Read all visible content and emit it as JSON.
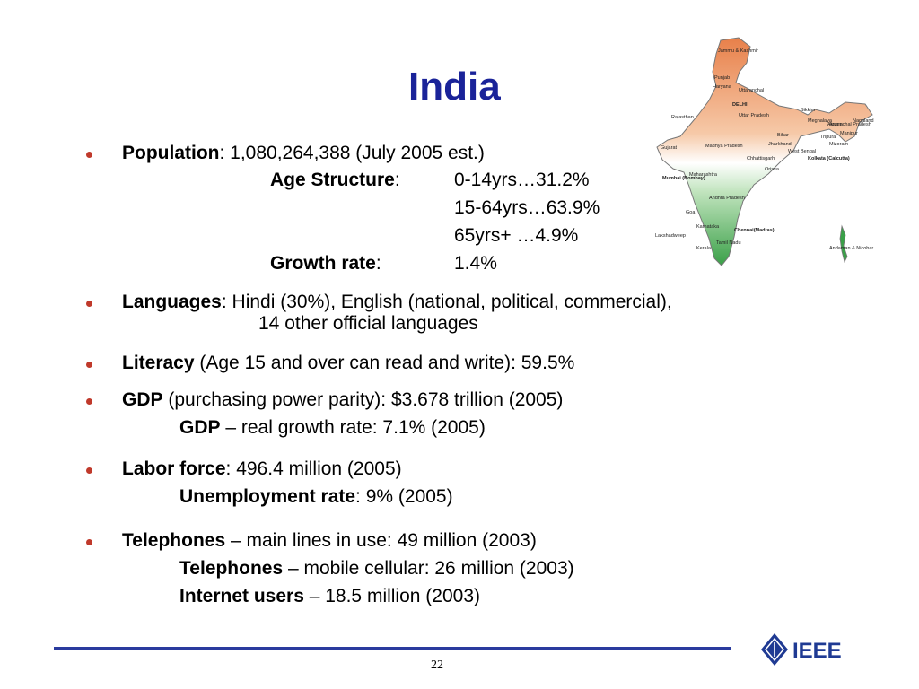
{
  "slide": {
    "title": "India",
    "page_number": "22",
    "logo_text": "IEEE"
  },
  "bullets": {
    "population": {
      "label": "Population",
      "text": ": 1,080,264,388 (July 2005 est.)",
      "age_structure_label": "Age Structure",
      "age_structure_colon": ":",
      "ages": [
        "0-14yrs…31.2%",
        "15-64yrs…63.9%",
        "65yrs+ …4.9%"
      ],
      "growth_label": "Growth rate",
      "growth_colon": ":",
      "growth_value": "1.4%"
    },
    "languages": {
      "label": "Languages",
      "text": ": Hindi (30%), English (national, political, commercial),",
      "text2": "14 other official languages"
    },
    "literacy": {
      "label": "Literacy",
      "text": " (Age 15 and over can read and write): 59.5%"
    },
    "gdp": {
      "label": "GDP",
      "text": " (purchasing power parity): $3.678 trillion (2005)",
      "sub_label": "GDP",
      "sub_text": " – real growth rate: 7.1% (2005)"
    },
    "labor": {
      "label": "Labor force",
      "text": ": 496.4 million (2005)",
      "sub_label": "Unemployment rate",
      "sub_text": ": 9% (2005)"
    },
    "telephones": {
      "label": "Telephones",
      "text": " – main lines in use: 49 million (2003)",
      "sub1_label": "Telephones",
      "sub1_text": " – mobile cellular: 26 million (2003)",
      "sub2_label": "Internet users",
      "sub2_text": " – 18.5 million (2003)"
    }
  },
  "map": {
    "labels": [
      "Jammu & Kashmir",
      "Punjab",
      "Haryana",
      "DELHI",
      "Uttaranchal",
      "Rajasthan",
      "Uttar Pradesh",
      "Sikkim",
      "Arunachal Pradesh",
      "Assam",
      "Nagaland",
      "Meghalaya",
      "Manipur",
      "Tripura",
      "Mizoram",
      "Bihar",
      "Jharkhand",
      "Gujarat",
      "Madhya Pradesh",
      "West Bengal",
      "Chhattisgarh",
      "Orissa",
      "Kolkata (Calcutta)",
      "Mumbai (Bombay)",
      "Maharashtra",
      "Andhra Pradesh",
      "Goa",
      "Karnataka",
      "Chennai(Madras)",
      "Lakshadweep",
      "Kerala",
      "Tamil Nadu",
      "Andaman & Nicobar"
    ]
  },
  "colors": {
    "title": "#1a2399",
    "bullet": "#c0392b",
    "rule": "#2a3b9e",
    "map_north": "#e8804a",
    "map_south": "#3aa048"
  }
}
